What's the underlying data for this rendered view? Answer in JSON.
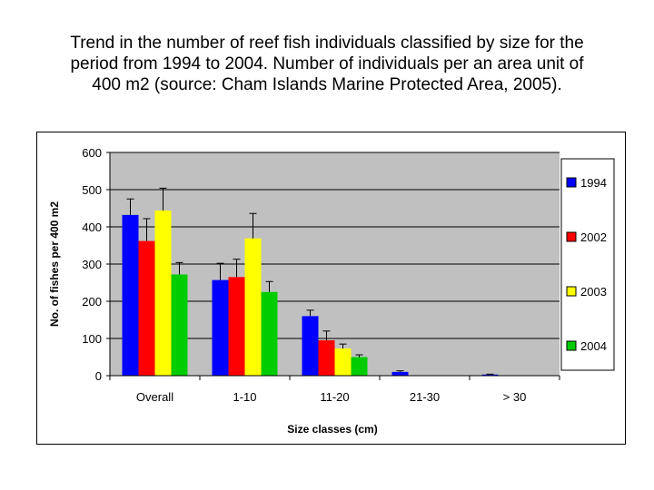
{
  "slide": {
    "title_lines": [
      "Trend in the number of reef fish individuals classified by size for the",
      "period from 1994 to 2004. Number of individuals per an area unit of",
      "400 m2 (source: Cham Islands Marine Protected Area, 2005)."
    ]
  },
  "chart_data": {
    "type": "bar",
    "categories": [
      "Overall",
      "1-10",
      "11-20",
      "21-30",
      "> 30"
    ],
    "series": [
      {
        "name": "1994",
        "color": "#0000FF",
        "values": [
          432,
          257,
          160,
          10,
          3
        ],
        "errors": [
          43,
          45,
          16,
          3,
          1
        ]
      },
      {
        "name": "2002",
        "color": "#FF0000",
        "values": [
          362,
          265,
          95,
          0,
          0
        ],
        "errors": [
          60,
          48,
          25,
          0,
          0
        ]
      },
      {
        "name": "2003",
        "color": "#FFFF00",
        "values": [
          444,
          369,
          73,
          0,
          0
        ],
        "errors": [
          60,
          67,
          12,
          0,
          0
        ]
      },
      {
        "name": "2004",
        "color": "#00CC00",
        "values": [
          272,
          225,
          50,
          0,
          0
        ],
        "errors": [
          32,
          28,
          6,
          0,
          0
        ]
      }
    ],
    "xlabel": "Size classes (cm)",
    "ylabel": "No. of fishes per 400 m2",
    "ylim": [
      0,
      600
    ],
    "yticks": [
      "0",
      "100",
      "200",
      "300",
      "400",
      "500",
      "600"
    ],
    "grid": true,
    "plot_background": "#C0C0C0",
    "legend_position": "right"
  }
}
